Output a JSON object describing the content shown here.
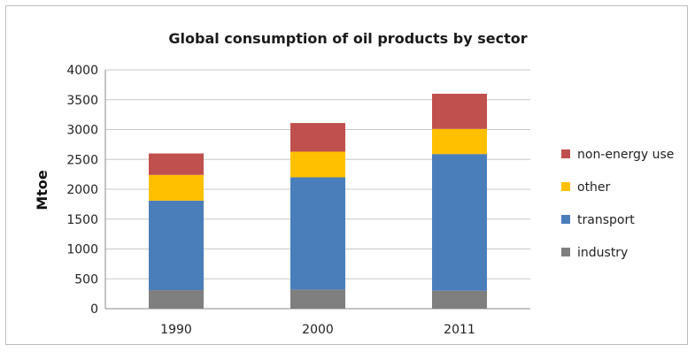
{
  "chart_data": {
    "type": "bar",
    "stacked": true,
    "title": "Global consumption of oil products by sector",
    "xlabel": "",
    "ylabel": "Mtoe",
    "categories": [
      "1990",
      "2000",
      "2011"
    ],
    "ylim": [
      0,
      4000
    ],
    "yticks": [
      0,
      500,
      1000,
      1500,
      2000,
      2500,
      3000,
      3500,
      4000
    ],
    "grid": true,
    "legend_position": "right",
    "series": [
      {
        "name": "industry",
        "color": "#7f7f7f",
        "values": [
          310,
          320,
          300
        ]
      },
      {
        "name": "transport",
        "color": "#4a7ebb",
        "values": [
          1500,
          1880,
          2290
        ]
      },
      {
        "name": "other",
        "color": "#ffc000",
        "values": [
          430,
          430,
          420
        ]
      },
      {
        "name": "non-energy use",
        "color": "#c0504d",
        "values": [
          360,
          480,
          590
        ]
      }
    ]
  }
}
